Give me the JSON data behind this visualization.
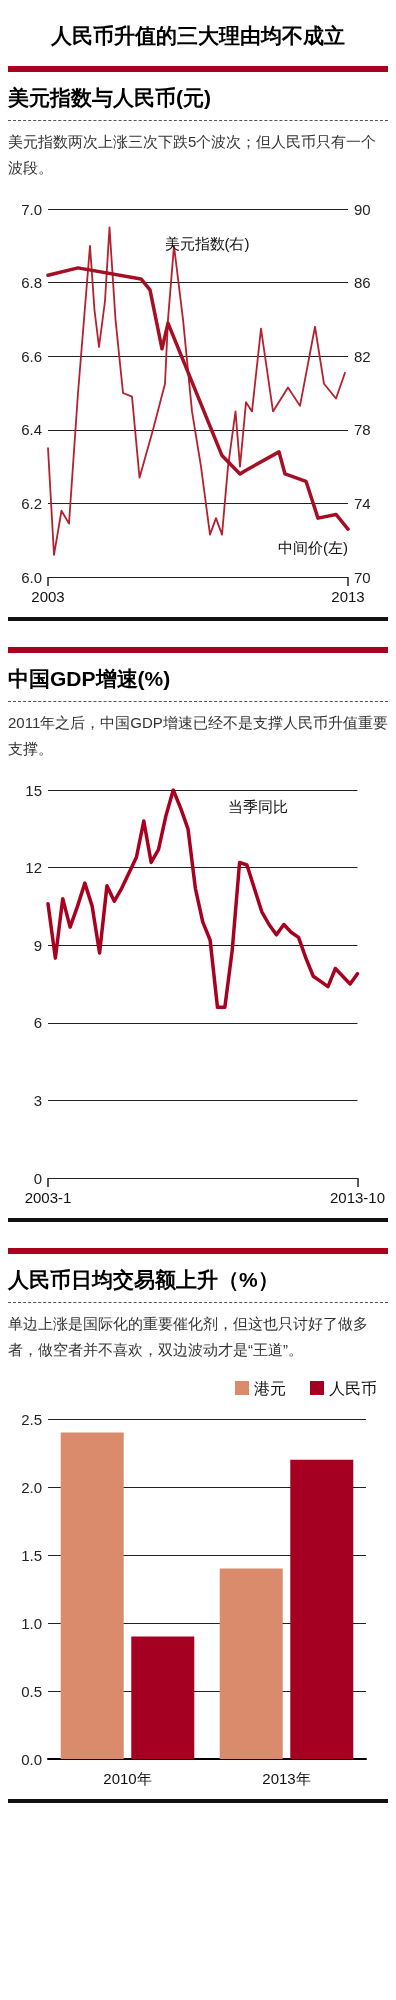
{
  "chart_data": [
    {
      "type": "line",
      "annotations": [
        "人民币升值的三大理由均不成立"
      ],
      "title": "美元指数与人民币(元)",
      "subtitle": "美元指数两次上涨三次下跌5个波次；但人民币只有一个波段。",
      "xlim": [
        2003,
        2013
      ],
      "xticks": [
        2003,
        2013
      ],
      "ylim": [
        6.0,
        7.0
      ],
      "yticks": [
        {
          "value": 6.0,
          "label": "6.0"
        },
        6.2,
        6.4,
        6.6,
        6.8,
        {
          "value": 7.0,
          "label": "7.0"
        }
      ],
      "y2lim": [
        70,
        90
      ],
      "y2ticks": [
        70,
        74,
        78,
        82,
        86,
        90
      ],
      "grid": "y",
      "legend": false,
      "marker": "none",
      "series": [
        {
          "name": "美元指数(右)",
          "color": "#b5202e",
          "axis": "y2",
          "x": [
            2003.0,
            2003.2,
            2003.45,
            2003.7,
            2004.0,
            2004.3,
            2004.4,
            2004.55,
            2004.7,
            2004.9,
            2005.05,
            2005.25,
            2005.5,
            2005.8,
            2006.05,
            2006.5,
            2006.9,
            2007.0,
            2007.2,
            2007.5,
            2007.8,
            2008.1,
            2008.4,
            2008.6,
            2008.8,
            2009.0,
            2009.25,
            2009.4,
            2009.6,
            2009.8,
            2010.1,
            2010.5,
            2011.0,
            2011.4,
            2011.9,
            2012.2,
            2012.6,
            2012.9
          ],
          "values": [
            77.0,
            71.2,
            73.6,
            72.9,
            80.0,
            86.0,
            88.0,
            84.5,
            82.5,
            85.0,
            89.0,
            84.0,
            80.0,
            79.8,
            75.4,
            78.0,
            80.5,
            84.0,
            88.0,
            84.0,
            79.0,
            76.0,
            72.3,
            73.2,
            72.3,
            76.0,
            79.0,
            76.0,
            79.5,
            79.0,
            83.5,
            79.0,
            80.3,
            79.3,
            83.6,
            80.5,
            79.7,
            81.1
          ]
        },
        {
          "name": "中间价(左)",
          "color": "#a50f23",
          "x": [
            2003.0,
            2004.0,
            2006.1,
            2006.4,
            2006.8,
            2007.0,
            2008.8,
            2009.4,
            2009.6,
            2010.7,
            2010.9,
            2011.6,
            2012.0,
            2012.6,
            2013.0
          ],
          "values": [
            6.82,
            6.84,
            6.81,
            6.78,
            6.62,
            6.69,
            6.33,
            6.28,
            6.29,
            6.34,
            6.28,
            6.26,
            6.16,
            6.17,
            6.13
          ]
        }
      ]
    },
    {
      "type": "line",
      "title": "中国GDP增速(%)",
      "subtitle": "2011年之后，中国GDP增速已经不是支撑人民币升值重要支撑。",
      "categories": [
        "2003-1",
        null,
        null,
        null,
        null,
        null,
        null,
        null,
        null,
        null,
        null,
        null,
        null,
        null,
        null,
        null,
        null,
        null,
        null,
        null,
        null,
        null,
        null,
        null,
        null,
        null,
        null,
        null,
        null,
        null,
        null,
        null,
        null,
        null,
        null,
        null,
        null,
        null,
        null,
        null,
        null,
        null,
        "2013-10"
      ],
      "ylim": [
        0,
        15
      ],
      "yticks": [
        0,
        3,
        6,
        9,
        12,
        15
      ],
      "grid": "y",
      "legend": false,
      "marker": "none",
      "series": [
        {
          "name": "当季同比",
          "color": "#a8001e",
          "values": [
            10.6,
            8.5,
            10.8,
            9.7,
            10.5,
            11.4,
            10.5,
            8.7,
            11.3,
            10.7,
            11.2,
            11.8,
            12.4,
            13.8,
            12.2,
            12.7,
            14.0,
            15.0,
            14.3,
            13.5,
            11.2,
            9.9,
            9.2,
            6.6,
            6.6,
            8.8,
            12.2,
            12.1,
            11.2,
            10.3,
            9.8,
            9.4,
            9.8,
            9.5,
            9.3,
            8.5,
            7.8,
            7.6,
            7.4,
            8.1,
            7.8,
            7.5,
            7.9
          ]
        }
      ]
    },
    {
      "type": "bar",
      "title": "人民币日均交易额上升（%）",
      "subtitle": "单边上涨是国际化的重要催化剂，但这也只讨好了做多者，做空者并不喜欢，双边波动才是“王道”。",
      "categories": [
        "2010年",
        "2013年"
      ],
      "ylim": [
        0,
        2.5
      ],
      "yticks": [
        {
          "value": 0,
          "label": "0.0"
        },
        0.5,
        {
          "value": 1,
          "label": "1.0"
        },
        1.5,
        {
          "value": 2,
          "label": "2.0"
        },
        2.5
      ],
      "grid": "y",
      "legend": "top right",
      "series": [
        {
          "name": "港元",
          "color": "#d98b6c",
          "values": [
            2.4,
            1.4
          ]
        },
        {
          "name": "人民币",
          "color": "#a50021",
          "values": [
            0.9,
            2.2
          ]
        }
      ]
    }
  ]
}
